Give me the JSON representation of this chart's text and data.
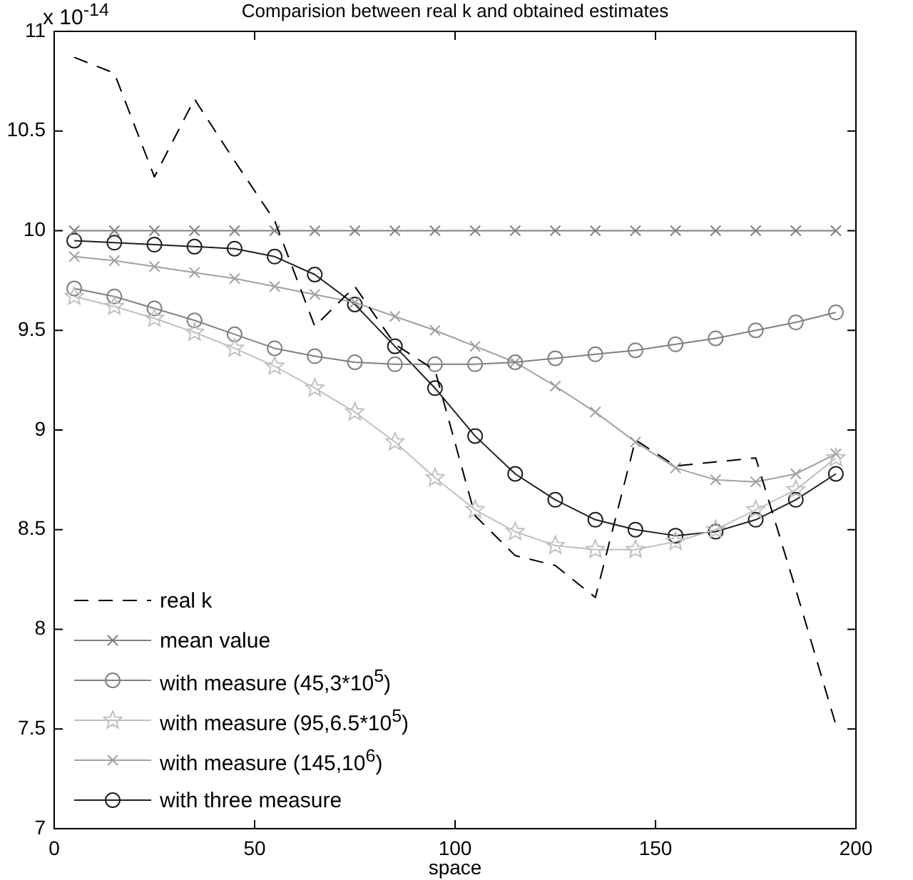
{
  "chart_data": {
    "type": "line",
    "title": "Comparision between real k and obtained estimates",
    "xlabel": "space",
    "annotations": [
      "x 10$^{-14}$"
    ],
    "x": [
      5,
      15,
      25,
      35,
      45,
      55,
      65,
      75,
      85,
      95,
      105,
      115,
      125,
      135,
      145,
      155,
      165,
      175,
      185,
      195
    ],
    "xlim": [
      0,
      200
    ],
    "xticks": [
      0,
      50,
      100,
      150,
      200
    ],
    "ylim": [
      7,
      11
    ],
    "yticks": [
      7,
      7.5,
      8,
      8.5,
      9,
      9.5,
      10,
      10.5,
      11
    ],
    "grid": false,
    "legend": "bottom left",
    "series": [
      {
        "name": "real k",
        "color": "#000000",
        "line_style": "dashed",
        "marker": "none",
        "values": [
          10.87,
          10.79,
          10.27,
          10.66,
          10.35,
          10.05,
          9.52,
          9.72,
          9.43,
          9.3,
          8.57,
          8.37,
          8.32,
          8.16,
          8.95,
          8.82,
          8.84,
          8.86,
          8.2,
          7.52
        ]
      },
      {
        "name": "mean value",
        "color": "#808080",
        "line_style": "solid",
        "marker": "cross",
        "values": [
          10,
          10,
          10,
          10,
          10,
          10,
          10,
          10,
          10,
          10,
          10,
          10,
          10,
          10,
          10,
          10,
          10,
          10,
          10,
          10
        ]
      },
      {
        "name": "with measure (45,3*10$^{5}$)",
        "color": "#808080",
        "line_style": "solid",
        "marker": "circle",
        "values": [
          9.71,
          9.67,
          9.61,
          9.55,
          9.48,
          9.41,
          9.37,
          9.34,
          9.33,
          9.33,
          9.33,
          9.34,
          9.36,
          9.38,
          9.4,
          9.43,
          9.46,
          9.5,
          9.54,
          9.59
        ]
      },
      {
        "name": "with measure (95,6.5*10$^{5}$)",
        "color": "#c0c0c0",
        "line_style": "solid",
        "marker": "star",
        "values": [
          9.67,
          9.62,
          9.56,
          9.49,
          9.41,
          9.32,
          9.21,
          9.09,
          8.94,
          8.76,
          8.6,
          8.49,
          8.42,
          8.4,
          8.4,
          8.44,
          8.5,
          8.6,
          8.7,
          8.86
        ]
      },
      {
        "name": "with measure (145,10$^{6}$)",
        "color": "#a0a0a0",
        "line_style": "solid",
        "marker": "cross",
        "values": [
          9.87,
          9.85,
          9.82,
          9.79,
          9.76,
          9.72,
          9.68,
          9.64,
          9.57,
          9.5,
          9.42,
          9.34,
          9.22,
          9.09,
          8.94,
          8.81,
          8.75,
          8.74,
          8.78,
          8.88
        ]
      },
      {
        "name": "with three measure",
        "color": "#202020",
        "line_style": "solid",
        "marker": "circle",
        "values": [
          9.95,
          9.94,
          9.93,
          9.92,
          9.91,
          9.87,
          9.78,
          9.63,
          9.42,
          9.21,
          8.97,
          8.78,
          8.65,
          8.55,
          8.5,
          8.47,
          8.49,
          8.55,
          8.65,
          8.78
        ]
      }
    ]
  }
}
